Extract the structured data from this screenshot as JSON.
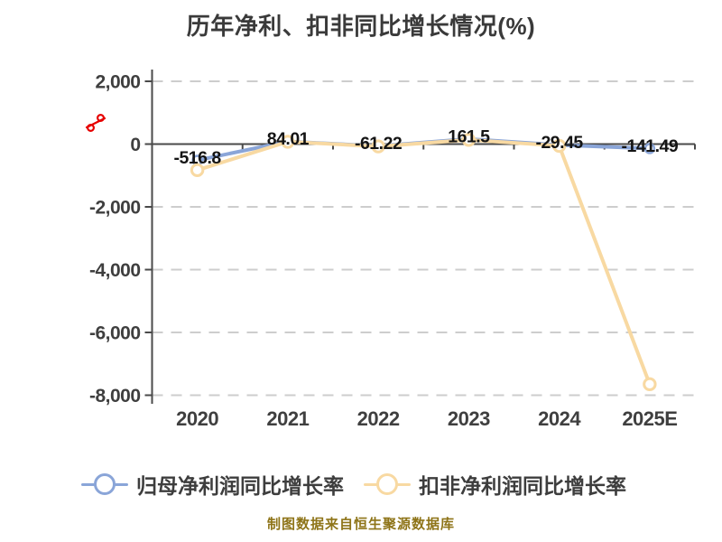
{
  "title": "历年净利、扣非同比增长情况(%)",
  "footer": "制图数据来自恒生聚源数据库",
  "y_axis": {
    "unit": "%",
    "unit_color": "#e60000",
    "tick_labels": [
      "2,000",
      "0",
      "-2,000",
      "-4,000",
      "-6,000",
      "-8,000"
    ],
    "tick_values": [
      2000,
      0,
      -2000,
      -4000,
      -6000,
      -8000
    ]
  },
  "x_axis": {
    "categories": [
      "2020",
      "2021",
      "2022",
      "2023",
      "2024",
      "2025E"
    ]
  },
  "chart_data": {
    "type": "line",
    "title": "历年净利、扣非同比增长情况(%)",
    "categories": [
      "2020",
      "2021",
      "2022",
      "2023",
      "2024",
      "2025E"
    ],
    "series": [
      {
        "name": "归母净利润同比增长率",
        "color": "#8aa5d8",
        "values": [
          -516.8,
          84.01,
          -61.22,
          161.5,
          -29.45,
          -141.49
        ],
        "point_labels": [
          "-516.8",
          "84.01",
          "-61.22",
          "161.5",
          "-29.45",
          "-141.49"
        ],
        "marker": "circle"
      },
      {
        "name": "扣非净利润同比增长率",
        "color": "#f8d9a2",
        "values": [
          -830,
          75,
          -75,
          135,
          -55,
          -7650
        ],
        "point_labels": [],
        "marker": "circle"
      }
    ],
    "ylim": [
      -8000,
      2000
    ],
    "ylabel": "%",
    "xlabel": "",
    "grid": "horizontal-dashed",
    "legend_position": "bottom"
  },
  "colors": {
    "title_text": "#3a3a3a",
    "axis_line": "#4a4a4a",
    "axis_text": "#3f3f3f",
    "grid_line": "#cdcdcd",
    "point_label_text": "#141414",
    "footer_text": "#8e7418",
    "unit_red": "#e60000",
    "background": "#ffffff"
  }
}
